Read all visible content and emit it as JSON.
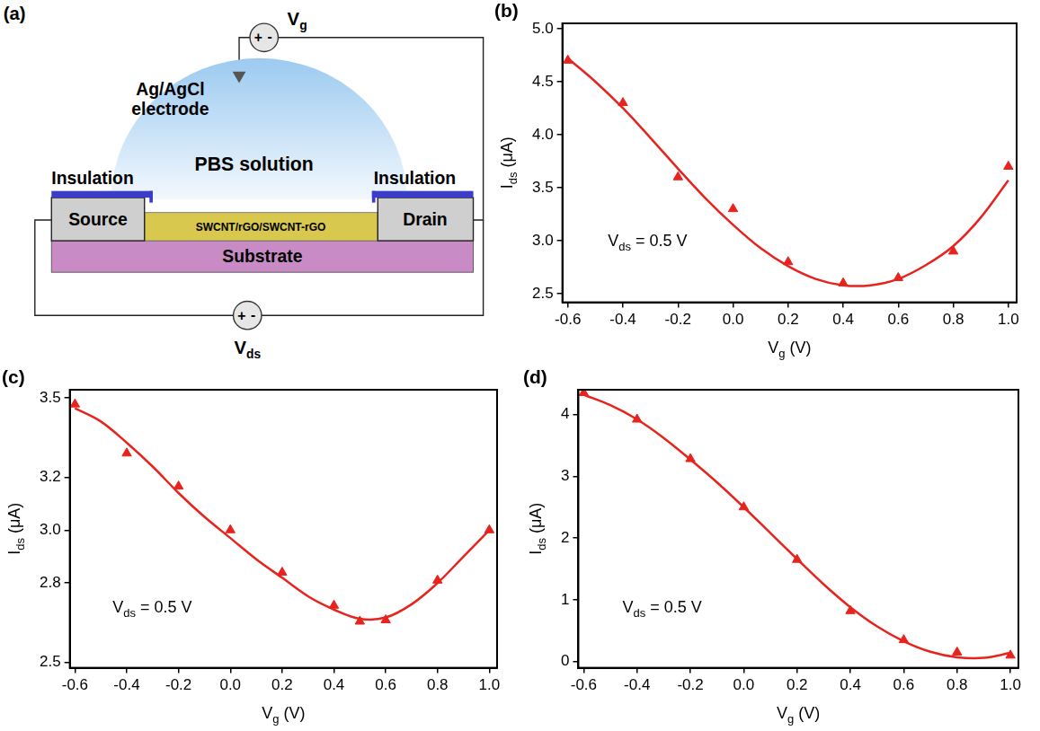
{
  "diagram": {
    "panel": "(a)",
    "electrode": [
      "Ag/AgCl",
      "electrode"
    ],
    "solution": "PBS solution",
    "insulation_left": "Insulation",
    "insulation_right": "Insulation",
    "source": "Source",
    "channel": "SWCNT/rGO/SWCNT-rGO",
    "drain": "Drain",
    "substrate": "Substrate",
    "gate_voltage": [
      "V",
      "g"
    ],
    "drain_voltage": [
      "V",
      "ds"
    ],
    "polarity": [
      "+",
      "-"
    ]
  },
  "chart_data": [
    {
      "panel": "(b)",
      "type": "scatter",
      "x_label": [
        "V",
        "g",
        " (V)"
      ],
      "y_label": [
        "I",
        "ds",
        " (μA)"
      ],
      "annotation": [
        "V",
        "ds",
        " = 0.5 V"
      ],
      "xlim": [
        -0.62,
        1.03
      ],
      "xticks": [
        -0.6,
        -0.4,
        -0.2,
        {
          "value": 0,
          "label": "0.0"
        },
        0.2,
        0.4,
        0.6,
        0.8,
        {
          "value": 1,
          "label": "1.0"
        }
      ],
      "ylim": [
        2.42,
        5.05
      ],
      "yticks": [
        2.5,
        {
          "value": 3,
          "label": "3.0"
        },
        3.5,
        {
          "value": 4,
          "label": "4.0"
        },
        4.5,
        {
          "value": 5,
          "label": "5.0"
        }
      ],
      "grid": false,
      "series": [
        {
          "type": "scatter",
          "marker": "triangle",
          "color": "#e8231e",
          "x": [
            -0.6,
            -0.4,
            -0.2,
            0,
            0.2,
            0.4,
            0.6,
            0.8,
            1.0
          ],
          "values": [
            4.7,
            4.3,
            3.6,
            3.3,
            2.8,
            2.6,
            2.65,
            2.9,
            3.7
          ]
        },
        {
          "type": "line",
          "line_style": "solid",
          "color": "#e8231e",
          "x": [
            -0.6,
            -0.5,
            -0.4,
            -0.3,
            -0.2,
            -0.1,
            0,
            0.1,
            0.2,
            0.3,
            0.4,
            0.5,
            0.6,
            0.7,
            0.8,
            0.9,
            1.0
          ],
          "values": [
            4.72,
            4.5,
            4.25,
            3.97,
            3.68,
            3.4,
            3.15,
            2.93,
            2.76,
            2.64,
            2.58,
            2.58,
            2.64,
            2.77,
            2.95,
            3.22,
            3.57
          ]
        }
      ]
    },
    {
      "panel": "(c)",
      "type": "scatter",
      "x_label": [
        "V",
        "g",
        " (V)"
      ],
      "y_label": [
        "I",
        "ds",
        " (μA)"
      ],
      "annotation": [
        "V",
        "ds",
        " = 0.5 V"
      ],
      "xlim": [
        -0.62,
        1.03
      ],
      "xticks": [
        -0.6,
        -0.4,
        -0.2,
        {
          "value": 0,
          "label": "0.0"
        },
        0.2,
        0.4,
        0.6,
        0.8,
        {
          "value": 1,
          "label": "1.0"
        }
      ],
      "ylim": [
        2.48,
        3.53
      ],
      "yticks": [
        2.5,
        2.8,
        {
          "value": 3,
          "label": "3.0"
        },
        3.2,
        3.5
      ],
      "grid": false,
      "series": [
        {
          "type": "scatter",
          "marker": "triangle",
          "color": "#e8231e",
          "x": [
            -0.6,
            -0.4,
            -0.2,
            0,
            0.2,
            0.4,
            0.5,
            0.6,
            0.8,
            1.0
          ],
          "values": [
            3.475,
            3.29,
            3.165,
            3.0,
            2.84,
            2.715,
            2.655,
            2.66,
            2.81,
            3.0
          ]
        },
        {
          "type": "line",
          "line_style": "solid",
          "color": "#e8231e",
          "x": [
            -0.6,
            -0.5,
            -0.4,
            -0.3,
            -0.2,
            -0.1,
            0,
            0.1,
            0.2,
            0.3,
            0.4,
            0.5,
            0.6,
            0.7,
            0.8,
            0.9,
            1.0
          ],
          "values": [
            3.46,
            3.41,
            3.33,
            3.24,
            3.14,
            3.05,
            2.97,
            2.89,
            2.82,
            2.75,
            2.7,
            2.665,
            2.67,
            2.72,
            2.8,
            2.9,
            3.0
          ]
        }
      ]
    },
    {
      "panel": "(d)",
      "type": "scatter",
      "x_label": [
        "V",
        "g",
        " (V)"
      ],
      "y_label": [
        "I",
        "ds",
        " (μA)"
      ],
      "annotation": [
        "V",
        "ds",
        " = 0.5 V"
      ],
      "xlim": [
        -0.62,
        1.03
      ],
      "xticks": [
        -0.6,
        -0.4,
        -0.2,
        {
          "value": 0,
          "label": "0.0"
        },
        0.2,
        0.4,
        0.6,
        0.8,
        {
          "value": 1,
          "label": "1.0"
        }
      ],
      "ylim": [
        -0.1,
        4.4
      ],
      "yticks": [
        0,
        1,
        2,
        3,
        4
      ],
      "grid": false,
      "series": [
        {
          "type": "scatter",
          "marker": "triangle",
          "color": "#e8231e",
          "x": [
            -0.6,
            -0.4,
            -0.2,
            0,
            0.2,
            0.4,
            0.6,
            0.8,
            1.0
          ],
          "values": [
            4.35,
            3.92,
            3.28,
            2.5,
            1.65,
            0.82,
            0.35,
            0.15,
            0.1
          ]
        },
        {
          "type": "line",
          "line_style": "solid",
          "color": "#e8231e",
          "x": [
            -0.6,
            -0.5,
            -0.4,
            -0.3,
            -0.2,
            -0.1,
            0,
            0.1,
            0.2,
            0.3,
            0.4,
            0.5,
            0.6,
            0.7,
            0.8,
            0.9,
            1.0
          ],
          "values": [
            4.32,
            4.15,
            3.92,
            3.62,
            3.27,
            2.9,
            2.5,
            2.08,
            1.66,
            1.25,
            0.88,
            0.57,
            0.33,
            0.16,
            0.07,
            0.06,
            0.14
          ]
        }
      ]
    }
  ]
}
